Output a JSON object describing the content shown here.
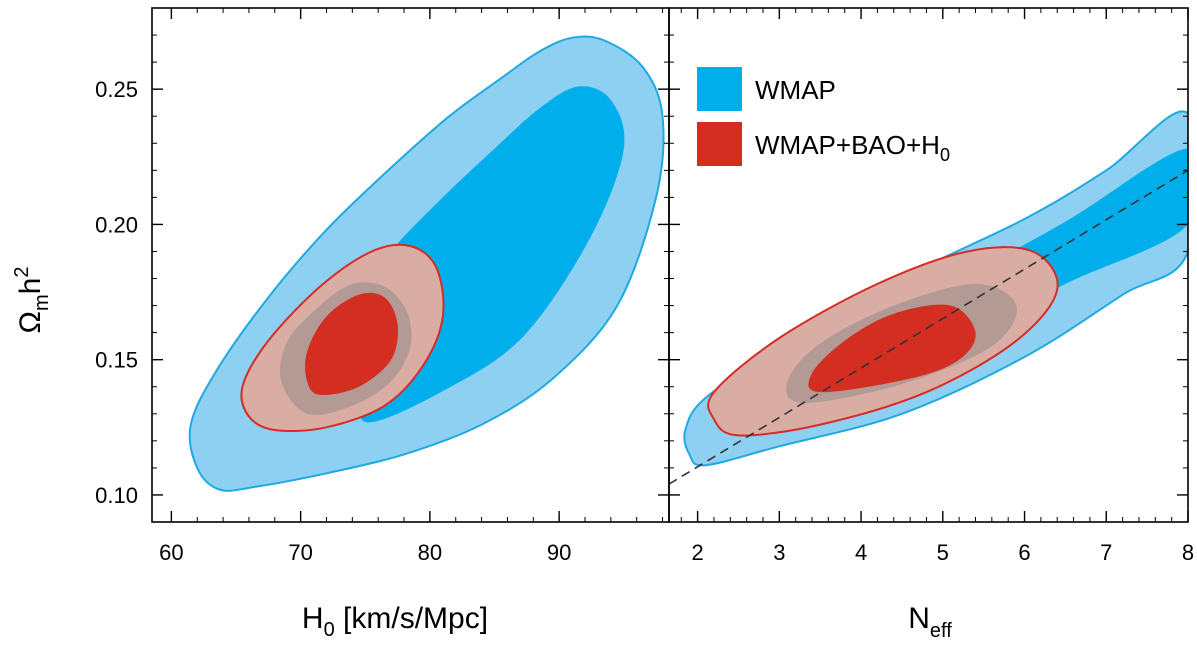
{
  "chart_data": [
    {
      "type": "contour",
      "panel": "left",
      "xlabel": "H",
      "xlabel_sub": "0",
      "xlabel_suffix": " [km/s/Mpc]",
      "ylabel": "Ω",
      "ylabel_sub": "m",
      "ylabel_suffix": "h",
      "ylabel_sup": "2",
      "xlim": [
        58.5,
        98.5
      ],
      "ylim": [
        0.09,
        0.28
      ],
      "xticks": [
        "60",
        "70",
        "80",
        "90"
      ],
      "yticks": [
        "0.10",
        "0.15",
        "0.20",
        "0.25"
      ],
      "series": [
        {
          "name": "WMAP",
          "level": "95%",
          "color": "#8DD0F2",
          "outline": "#1FA9E2",
          "points": [
            [
              63.7,
              0.102
            ],
            [
              66.5,
              0.103
            ],
            [
              72.0,
              0.108
            ],
            [
              78.0,
              0.115
            ],
            [
              84.0,
              0.126
            ],
            [
              89.5,
              0.143
            ],
            [
              94.5,
              0.17
            ],
            [
              97.5,
              0.21
            ],
            [
              98.0,
              0.24
            ],
            [
              96.5,
              0.258
            ],
            [
              93.5,
              0.268
            ],
            [
              91.0,
              0.269
            ],
            [
              88.5,
              0.264
            ],
            [
              85.5,
              0.254
            ],
            [
              81.5,
              0.24
            ],
            [
              77.0,
              0.221
            ],
            [
              72.0,
              0.198
            ],
            [
              67.5,
              0.173
            ],
            [
              63.5,
              0.146
            ],
            [
              61.5,
              0.126
            ],
            [
              62.0,
              0.11
            ]
          ]
        },
        {
          "name": "WMAP",
          "level": "68%",
          "color": "#00AEEB",
          "points": [
            [
              75.0,
              0.127
            ],
            [
              82.0,
              0.141
            ],
            [
              87.5,
              0.16
            ],
            [
              92.5,
              0.196
            ],
            [
              95.0,
              0.228
            ],
            [
              94.0,
              0.246
            ],
            [
              91.5,
              0.251
            ],
            [
              88.5,
              0.243
            ],
            [
              85.0,
              0.228
            ],
            [
              81.0,
              0.21
            ],
            [
              77.0,
              0.19
            ],
            [
              75.5,
              0.176
            ],
            [
              75.5,
              0.15
            ]
          ]
        },
        {
          "name": "WMAP+BAO+H0",
          "level": "95%",
          "color": "#D9ADA3",
          "outline": "#D62C25",
          "points": [
            [
              68.0,
              0.124
            ],
            [
              72.0,
              0.125
            ],
            [
              76.5,
              0.133
            ],
            [
              79.5,
              0.148
            ],
            [
              81.0,
              0.166
            ],
            [
              80.5,
              0.184
            ],
            [
              78.5,
              0.192
            ],
            [
              75.5,
              0.19
            ],
            [
              71.5,
              0.177
            ],
            [
              67.5,
              0.157
            ],
            [
              65.5,
              0.14
            ],
            [
              66.0,
              0.129
            ]
          ]
        },
        {
          "name": "WMAP+BAO+H0",
          "level": "95% shade",
          "color": "#B39A95",
          "points": [
            [
              70.5,
              0.13
            ],
            [
              74.0,
              0.133
            ],
            [
              77.0,
              0.142
            ],
            [
              78.5,
              0.155
            ],
            [
              78.2,
              0.168
            ],
            [
              76.5,
              0.177
            ],
            [
              74.0,
              0.178
            ],
            [
              71.5,
              0.17
            ],
            [
              69.0,
              0.157
            ],
            [
              68.5,
              0.142
            ]
          ]
        },
        {
          "name": "WMAP+BAO+H0",
          "level": "68%",
          "color": "#D42E22",
          "points": [
            [
              71.5,
              0.137
            ],
            [
              74.5,
              0.14
            ],
            [
              77.0,
              0.15
            ],
            [
              77.5,
              0.163
            ],
            [
              76.5,
              0.173
            ],
            [
              74.5,
              0.174
            ],
            [
              72.0,
              0.166
            ],
            [
              70.5,
              0.153
            ],
            [
              70.5,
              0.142
            ]
          ]
        }
      ]
    },
    {
      "type": "contour",
      "panel": "right",
      "xlabel": "N",
      "xlabel_sub": "eff",
      "xlim": [
        1.65,
        8.0
      ],
      "ylim": [
        0.09,
        0.28
      ],
      "xticks": [
        "2",
        "3",
        "4",
        "5",
        "6",
        "7",
        "8"
      ],
      "legend_position": "top-left",
      "legend": [
        {
          "label": "WMAP",
          "color": "#00AEEB"
        },
        {
          "label": "WMAP+BAO+H",
          "label_sub": "0",
          "color": "#D42E22"
        }
      ],
      "reference_line": {
        "style": "dashed",
        "points": [
          [
            1.65,
            0.104
          ],
          [
            8.0,
            0.22
          ]
        ]
      },
      "series": [
        {
          "name": "WMAP",
          "level": "95%",
          "color": "#8DD0F2",
          "outline": "#1FA9E2",
          "points": [
            [
              2.1,
              0.111
            ],
            [
              3.0,
              0.118
            ],
            [
              4.5,
              0.13
            ],
            [
              6.0,
              0.151
            ],
            [
              7.2,
              0.174
            ],
            [
              8.0,
              0.19
            ],
            [
              8.0,
              0.241
            ],
            [
              7.0,
              0.22
            ],
            [
              6.0,
              0.202
            ],
            [
              4.5,
              0.18
            ],
            [
              3.0,
              0.153
            ],
            [
              2.1,
              0.136
            ],
            [
              1.85,
              0.124
            ],
            [
              1.9,
              0.115
            ]
          ]
        },
        {
          "name": "WMAP",
          "level": "68%",
          "color": "#00AEEB",
          "points": [
            [
              3.5,
              0.136
            ],
            [
              5.0,
              0.155
            ],
            [
              6.5,
              0.178
            ],
            [
              8.0,
              0.2
            ],
            [
              8.0,
              0.228
            ],
            [
              6.5,
              0.201
            ],
            [
              5.0,
              0.176
            ],
            [
              3.5,
              0.15
            ]
          ]
        },
        {
          "name": "WMAP+BAO+H0",
          "level": "95%",
          "color": "#D9ADA3",
          "outline": "#D62C25",
          "points": [
            [
              2.5,
              0.122
            ],
            [
              3.5,
              0.126
            ],
            [
              4.8,
              0.138
            ],
            [
              5.9,
              0.157
            ],
            [
              6.4,
              0.176
            ],
            [
              6.1,
              0.19
            ],
            [
              5.3,
              0.19
            ],
            [
              4.2,
              0.178
            ],
            [
              3.0,
              0.158
            ],
            [
              2.2,
              0.138
            ],
            [
              2.2,
              0.128
            ]
          ]
        },
        {
          "name": "WMAP+BAO+H0",
          "level": "95% shade",
          "color": "#B39A95",
          "points": [
            [
              3.3,
              0.134
            ],
            [
              4.5,
              0.141
            ],
            [
              5.6,
              0.155
            ],
            [
              5.9,
              0.17
            ],
            [
              5.4,
              0.178
            ],
            [
              4.4,
              0.17
            ],
            [
              3.5,
              0.156
            ],
            [
              3.1,
              0.142
            ]
          ]
        },
        {
          "name": "WMAP+BAO+H0",
          "level": "68%",
          "color": "#D42E22",
          "points": [
            [
              3.5,
              0.138
            ],
            [
              4.6,
              0.143
            ],
            [
              5.2,
              0.15
            ],
            [
              5.4,
              0.16
            ],
            [
              5.1,
              0.17
            ],
            [
              4.4,
              0.167
            ],
            [
              3.8,
              0.157
            ],
            [
              3.4,
              0.145
            ]
          ]
        }
      ]
    }
  ]
}
